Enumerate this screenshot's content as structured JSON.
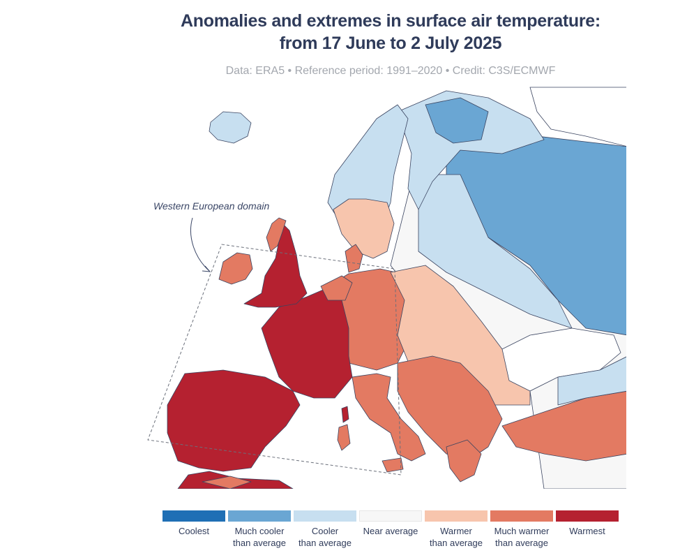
{
  "header": {
    "title_line1": "Anomalies and extremes in surface air temperature:",
    "title_line2": "from 17 June to 2 July 2025",
    "subtitle": "Data: ERA5 • Reference period: 1991–2020 • Credit: C3S/ECMWF"
  },
  "map": {
    "domain_label": "Western European domain",
    "category_colors": {
      "coolest": "#1f6fb5",
      "much_cooler": "#6aa6d3",
      "cooler": "#c7dff0",
      "near": "#f7f7f7",
      "warmer": "#f7c5ad",
      "much_warmer": "#e37a62",
      "warmest": "#b52130"
    },
    "regions": [
      {
        "name": "Iceland",
        "category": "cooler"
      },
      {
        "name": "Ireland",
        "category": "much_warmer"
      },
      {
        "name": "Great Britain (south/central)",
        "category": "warmest"
      },
      {
        "name": "Scotland",
        "category": "much_warmer"
      },
      {
        "name": "France",
        "category": "warmest"
      },
      {
        "name": "Iberian Peninsula",
        "category": "warmest"
      },
      {
        "name": "Germany / Central Europe",
        "category": "much_warmer"
      },
      {
        "name": "Italy",
        "category": "much_warmer"
      },
      {
        "name": "Balkans",
        "category": "much_warmer"
      },
      {
        "name": "Eastern Europe",
        "category": "warmer"
      },
      {
        "name": "Southern Scandinavia",
        "category": "warmer"
      },
      {
        "name": "Northern Scandinavia / Finland",
        "category": "much_cooler"
      },
      {
        "name": "Western Russia",
        "category": "much_cooler"
      },
      {
        "name": "Ukraine / Black Sea region",
        "category": "near"
      },
      {
        "name": "Turkey",
        "category": "much_warmer"
      }
    ]
  },
  "legend": {
    "items": [
      {
        "key": "coolest",
        "line1": "Coolest",
        "line2": "",
        "color": "#1f6fb5"
      },
      {
        "key": "much_cooler",
        "line1": "Much cooler",
        "line2": "than average",
        "color": "#6aa6d3"
      },
      {
        "key": "cooler",
        "line1": "Cooler",
        "line2": "than average",
        "color": "#c7dff0"
      },
      {
        "key": "near",
        "line1": "Near average",
        "line2": "",
        "color": "#f7f7f7"
      },
      {
        "key": "warmer",
        "line1": "Warmer",
        "line2": "than average",
        "color": "#f7c5ad"
      },
      {
        "key": "much_warmer",
        "line1": "Much warmer",
        "line2": "than average",
        "color": "#e37a62"
      },
      {
        "key": "warmest",
        "line1": "Warmest",
        "line2": "",
        "color": "#b52130"
      }
    ]
  }
}
